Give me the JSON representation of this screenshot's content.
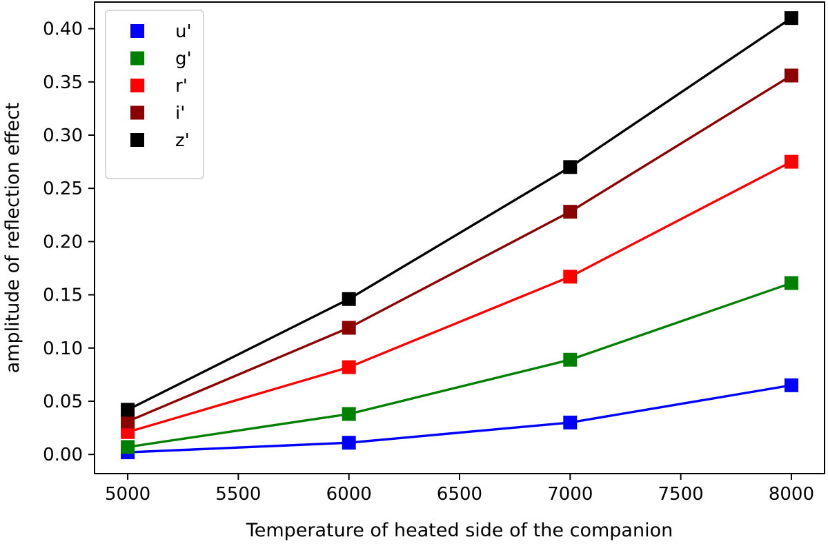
{
  "chart_data": {
    "type": "line",
    "title": "",
    "xlabel": "Temperature of heated side of the companion",
    "ylabel": "amplitude of reflection effect",
    "x": [
      5000,
      6000,
      7000,
      8000
    ],
    "xlim": [
      4850,
      8150
    ],
    "ylim": [
      -0.018,
      0.425
    ],
    "xticks": [
      5000,
      5500,
      6000,
      6500,
      7000,
      7500,
      8000
    ],
    "xtick_labels": [
      "5000",
      "5500",
      "6000",
      "6500",
      "7000",
      "7500",
      "8000"
    ],
    "yticks": [
      0.0,
      0.05,
      0.1,
      0.15,
      0.2,
      0.25,
      0.3,
      0.35,
      0.4
    ],
    "ytick_labels": [
      "0.00",
      "0.05",
      "0.10",
      "0.15",
      "0.20",
      "0.25",
      "0.30",
      "0.35",
      "0.40"
    ],
    "grid": false,
    "legend_position": "top-left",
    "marker": "square",
    "series": [
      {
        "name": "u'",
        "color": "#0000ff",
        "values": [
          0.002,
          0.011,
          0.03,
          0.065
        ]
      },
      {
        "name": "g'",
        "color": "#008000",
        "values": [
          0.007,
          0.038,
          0.089,
          0.161
        ]
      },
      {
        "name": "r'",
        "color": "#ff0000",
        "values": [
          0.021,
          0.082,
          0.167,
          0.275
        ]
      },
      {
        "name": "i'",
        "color": "#8b0000",
        "values": [
          0.031,
          0.119,
          0.228,
          0.356
        ]
      },
      {
        "name": "z'",
        "color": "#000000",
        "values": [
          0.042,
          0.146,
          0.27,
          0.41
        ]
      }
    ]
  }
}
